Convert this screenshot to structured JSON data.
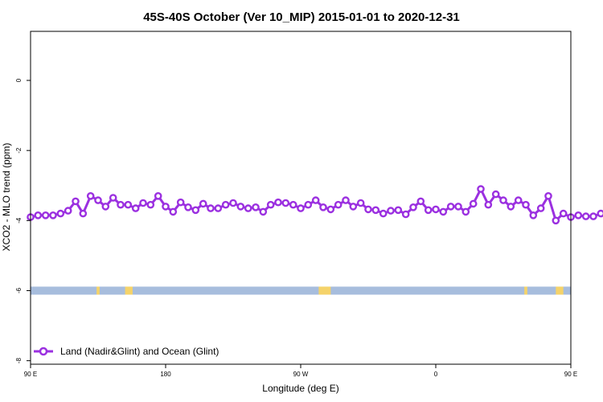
{
  "chart_data": {
    "type": "line",
    "title": "45S-40S October (Ver 10_MIP)   2015-01-01 to 2020-12-31",
    "xlabel": "Longitude (deg E)",
    "ylabel": "XCO2 - MLO trend (ppm)",
    "xlim": [
      90,
      450
    ],
    "ylim": [
      -8.1,
      1.4
    ],
    "x_ticks": [
      {
        "value": 90,
        "label": "90 E"
      },
      {
        "value": 180,
        "label": "180"
      },
      {
        "value": 270,
        "label": "90 W"
      },
      {
        "value": 360,
        "label": "0"
      },
      {
        "value": 450,
        "label": "90 E"
      },
      {
        "value": 540,
        "label": "180"
      }
    ],
    "y_ticks": [
      {
        "value": 0,
        "label": "0"
      },
      {
        "value": -2,
        "label": "-2"
      },
      {
        "value": -4,
        "label": "-4"
      },
      {
        "value": -6,
        "label": "-6"
      },
      {
        "value": -8,
        "label": "-8"
      }
    ],
    "grid": false,
    "legend_position": "bottom-left",
    "series": [
      {
        "name": "Land (Nadir&Glint) and Ocean (Glint)",
        "color": "#9B30E0",
        "marker": "open-circle",
        "x_start": 90,
        "x_step": 5,
        "values": [
          -3.9,
          -3.85,
          -3.85,
          -3.85,
          -3.8,
          -3.72,
          -3.45,
          -3.8,
          -3.3,
          -3.42,
          -3.6,
          -3.35,
          -3.55,
          -3.55,
          -3.65,
          -3.5,
          -3.55,
          -3.3,
          -3.6,
          -3.75,
          -3.48,
          -3.62,
          -3.7,
          -3.52,
          -3.65,
          -3.65,
          -3.55,
          -3.5,
          -3.6,
          -3.65,
          -3.62,
          -3.75,
          -3.55,
          -3.48,
          -3.5,
          -3.55,
          -3.65,
          -3.55,
          -3.42,
          -3.62,
          -3.68,
          -3.55,
          -3.42,
          -3.6,
          -3.5,
          -3.68,
          -3.7,
          -3.8,
          -3.72,
          -3.7,
          -3.82,
          -3.62,
          -3.45,
          -3.7,
          -3.68,
          -3.75,
          -3.6,
          -3.6,
          -3.75,
          -3.52,
          -3.1,
          -3.55,
          -3.25,
          -3.42,
          -3.6,
          -3.42,
          -3.55,
          -3.85,
          -3.65,
          -3.3,
          -4.0,
          -3.8,
          -3.9,
          -3.85,
          -3.88,
          -3.88,
          -3.8,
          -3.72,
          -3.5,
          -3.8,
          -3.3,
          -3.42,
          -3.6,
          -3.38,
          -3.55,
          -3.55,
          -3.65,
          -3.5,
          -3.55,
          -3.3
        ]
      }
    ],
    "surface_band": {
      "y_value": -6,
      "ocean_color": "#A7BDDD",
      "land_color": "#F5D36A",
      "land_segments": [
        [
          134,
          136
        ],
        [
          153,
          158
        ],
        [
          282,
          290
        ],
        [
          419,
          421
        ],
        [
          440,
          445
        ]
      ]
    }
  }
}
